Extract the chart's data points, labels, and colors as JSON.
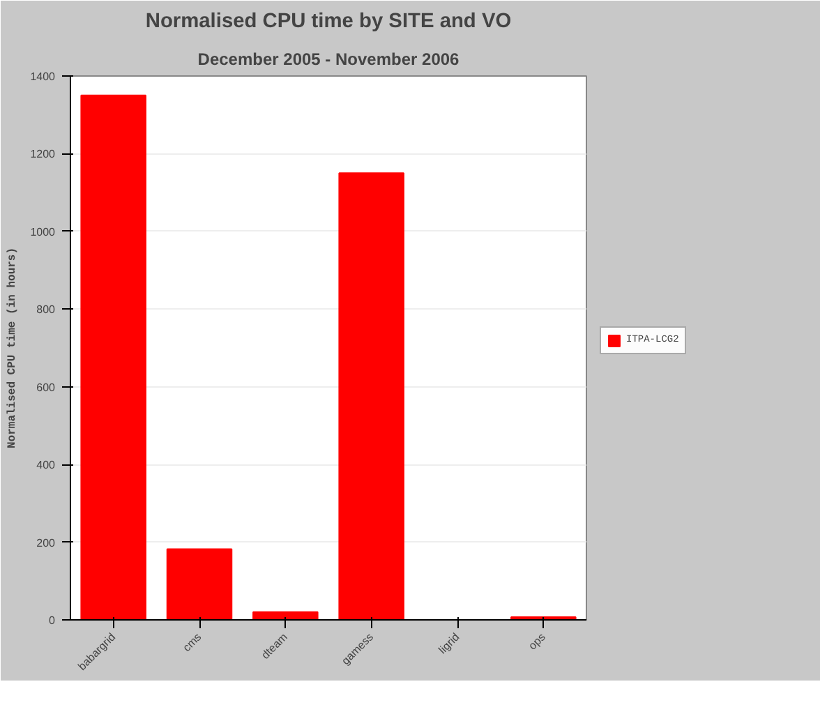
{
  "chart_data": {
    "type": "bar",
    "title": "Normalised CPU time by SITE and VO",
    "subtitle": "December 2005 - November 2006",
    "ylabel": "Normalised CPU time (in hours)",
    "categories": [
      "babargrid",
      "cms",
      "dteam",
      "gamess",
      "ligrid",
      "ops"
    ],
    "series": [
      {
        "name": "ITPA-LCG2",
        "color": "#ff0000",
        "values": [
          1350,
          182,
          20,
          1150,
          0,
          7
        ]
      }
    ],
    "ylim": [
      0,
      1400
    ],
    "yticks": [
      0,
      200,
      400,
      600,
      800,
      1000,
      1200,
      1400
    ],
    "grid": "y",
    "legend": "right"
  }
}
